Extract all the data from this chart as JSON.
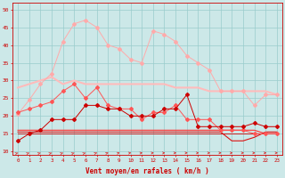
{
  "x": [
    0,
    1,
    2,
    3,
    4,
    5,
    6,
    7,
    8,
    9,
    10,
    11,
    12,
    13,
    14,
    15,
    16,
    17,
    18,
    19,
    20,
    21,
    22,
    23
  ],
  "line1": [
    20.5,
    24.5,
    29,
    32,
    41,
    46,
    47,
    45,
    40,
    39,
    36,
    35,
    44,
    43,
    41,
    37,
    35,
    33,
    27,
    27,
    27,
    23,
    26,
    26
  ],
  "line2": [
    28,
    29,
    30,
    31,
    29,
    30,
    29,
    29,
    29,
    29,
    29,
    29,
    29,
    29,
    28,
    28,
    28,
    27,
    27,
    27,
    27,
    27,
    27,
    26
  ],
  "line3": [
    21,
    22,
    23,
    24,
    27,
    29,
    25,
    28,
    23,
    22,
    22,
    19,
    21,
    21,
    23,
    19,
    19,
    19,
    16,
    16,
    16,
    15,
    15,
    15
  ],
  "line4": [
    13,
    15,
    16,
    19,
    19,
    19,
    23,
    23,
    22,
    22,
    20,
    20,
    20,
    22,
    22,
    26,
    17,
    17,
    17,
    17,
    17,
    18,
    17,
    17
  ],
  "line5_a": [
    16,
    16,
    16,
    16,
    16,
    16,
    16,
    16,
    16,
    16,
    16,
    16,
    16,
    16,
    16,
    16,
    16,
    16,
    16,
    16,
    16,
    16,
    15,
    15
  ],
  "line5_b": [
    15.5,
    15.5,
    15.5,
    15.5,
    15.5,
    15.5,
    15.5,
    15.5,
    15.5,
    15.5,
    15.5,
    15.5,
    15.5,
    15.5,
    15.5,
    15.5,
    15.5,
    15.5,
    15.5,
    13,
    13,
    14,
    15.5,
    15.5
  ],
  "line5_c": [
    15,
    15,
    15,
    15,
    15,
    15,
    15,
    15,
    15,
    15,
    15,
    15,
    15,
    15,
    15,
    15,
    15,
    15,
    15,
    15,
    15,
    15,
    15,
    15
  ],
  "background_color": "#cce8e8",
  "grid_color": "#99cccc",
  "line1_color": "#ffaaaa",
  "line2_color": "#ffbbbb",
  "line3_color": "#ff5555",
  "line4_color": "#cc0000",
  "line5a_color": "#ff3333",
  "line5b_color": "#dd1111",
  "line5c_color": "#cc0000",
  "arrow_color": "#dd2222",
  "xlabel": "Vent moyen/en rafales ( km/h )",
  "ylabel_ticks": [
    10,
    15,
    20,
    25,
    30,
    35,
    40,
    45,
    50
  ],
  "ylim": [
    9,
    52
  ],
  "xlim": [
    -0.5,
    23.5
  ],
  "arrow_angles_deg": [
    45,
    45,
    45,
    45,
    45,
    45,
    45,
    40,
    35,
    30,
    20,
    15,
    10,
    5,
    0,
    0,
    0,
    0,
    0,
    0,
    0,
    0,
    0,
    0
  ]
}
